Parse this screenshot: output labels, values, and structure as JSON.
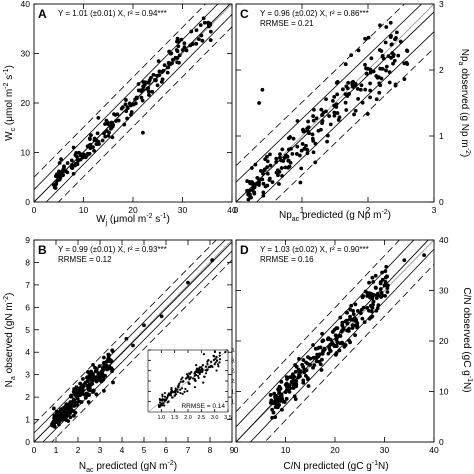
{
  "chart_data": [
    {
      "id": "A",
      "type": "scatter",
      "letter": "A",
      "annotation": [
        "Y = 1.01 (±0.01) X, r² = 0.94***"
      ],
      "xlabel": "W_j (μmol m⁻² s⁻¹)",
      "ylabel": "W_c (μmol m⁻² s⁻¹)",
      "xlim": [
        0,
        40
      ],
      "ylim": [
        0,
        40
      ],
      "xticks": [
        "0",
        "10",
        "20",
        "30",
        "40"
      ],
      "yticks": [
        "0",
        "10",
        "20",
        "30",
        "40"
      ],
      "y_axis_side": "left",
      "fit_slope": 1.01,
      "ci_lines": [
        2.5,
        5
      ],
      "cloud": {
        "n": 200,
        "x_range": [
          4,
          36
        ],
        "spread": 1.4,
        "seed": 11
      },
      "points": [
        [
          22,
          14
        ],
        [
          13,
          17
        ],
        [
          8,
          11
        ],
        [
          29,
          33
        ]
      ]
    },
    {
      "id": "C",
      "type": "scatter",
      "letter": "C",
      "annotation": [
        "Y = 0.96 (±0.02) X, r² = 0.86***",
        "RRMSE = 0.21"
      ],
      "xlabel": "Np_ac predicted (g Np m⁻²)",
      "ylabel": "Np_a observed (g Np m⁻²)",
      "xlim": [
        0,
        3
      ],
      "ylim": [
        0,
        3
      ],
      "xticks": [
        "0",
        "1",
        "2",
        "3"
      ],
      "yticks": [
        "0",
        "1",
        "2",
        "3"
      ],
      "y_axis_side": "right",
      "fit_slope": 0.96,
      "ci_lines": [
        0.3,
        0.55
      ],
      "cloud": {
        "n": 230,
        "x_range": [
          0.15,
          2.6
        ],
        "spread": 0.22,
        "seed": 23
      },
      "points": [
        [
          0.4,
          1.7
        ],
        [
          0.35,
          1.5
        ],
        [
          1.2,
          0.6
        ],
        [
          2.55,
          2.1
        ]
      ]
    },
    {
      "id": "B",
      "type": "scatter",
      "letter": "B",
      "annotation": [
        "Y = 0.99 (±0.01) X, r² = 0.93***",
        "RRMSE = 0.12"
      ],
      "xlabel": "N_ac predicted (gN m⁻²)",
      "ylabel": "N_a observed (gN m⁻²)",
      "xlim": [
        0,
        9
      ],
      "ylim": [
        0,
        9
      ],
      "xticks": [
        "0",
        "1",
        "2",
        "3",
        "4",
        "5",
        "6",
        "7",
        "8",
        "9"
      ],
      "yticks": [
        "0",
        "1",
        "2",
        "3",
        "4",
        "5",
        "6",
        "7",
        "8",
        "9"
      ],
      "y_axis_side": "left",
      "fit_slope": 0.99,
      "ci_lines": [
        0.4,
        0.8
      ],
      "cloud": {
        "n": 240,
        "x_range": [
          0.8,
          3.6
        ],
        "spread": 0.32,
        "seed": 37
      },
      "points": [
        [
          4.5,
          4.3
        ],
        [
          5.0,
          5.2
        ],
        [
          5.8,
          5.6
        ],
        [
          7.0,
          7.1
        ],
        [
          8.1,
          8.1
        ],
        [
          4.2,
          4.6
        ]
      ]
    },
    {
      "id": "B-inset",
      "type": "scatter",
      "letter": "",
      "annotation": [],
      "inset_label": "RRMSE = 0.14",
      "xlabel": "",
      "ylabel": "",
      "xlim": [
        0.5,
        3.5
      ],
      "ylim": [
        0.5,
        3.5
      ],
      "xticks": [
        "1.0",
        "1.5",
        "2.0",
        "2.5",
        "3.0",
        "3.5"
      ],
      "yticks": [
        "1.0",
        "1.5",
        "2.0",
        "2.5",
        "3.0",
        "3.5"
      ],
      "y_axis_side": "right",
      "fit_slope": 1.0,
      "ci_lines": [],
      "cloud": {
        "n": 170,
        "x_range": [
          0.9,
          3.2
        ],
        "spread": 0.22,
        "seed": 53
      },
      "points": [
        [
          3.4,
          3.4
        ],
        [
          2.6,
          3.3
        ]
      ]
    },
    {
      "id": "D",
      "type": "scatter",
      "letter": "D",
      "annotation": [
        "Y = 1.03 (±0.02) X, r² = 0.90***",
        "RRMSE = 0.16"
      ],
      "xlabel": "C/N predicted (gC g⁻¹N)",
      "ylabel": "C/N observed (gC g⁻¹N)",
      "xlim": [
        0,
        40
      ],
      "ylim": [
        0,
        40
      ],
      "xticks": [
        "0",
        "10",
        "20",
        "30",
        "40"
      ],
      "yticks": [
        "0",
        "10",
        "20",
        "30",
        "40"
      ],
      "y_axis_side": "right",
      "fit_slope": 1.03,
      "ci_lines": [
        3,
        6
      ],
      "cloud": {
        "n": 260,
        "x_range": [
          7,
          31
        ],
        "spread": 2.0,
        "seed": 71
      },
      "points": [
        [
          38,
          37
        ],
        [
          34,
          36
        ],
        [
          30,
          31
        ]
      ]
    }
  ]
}
